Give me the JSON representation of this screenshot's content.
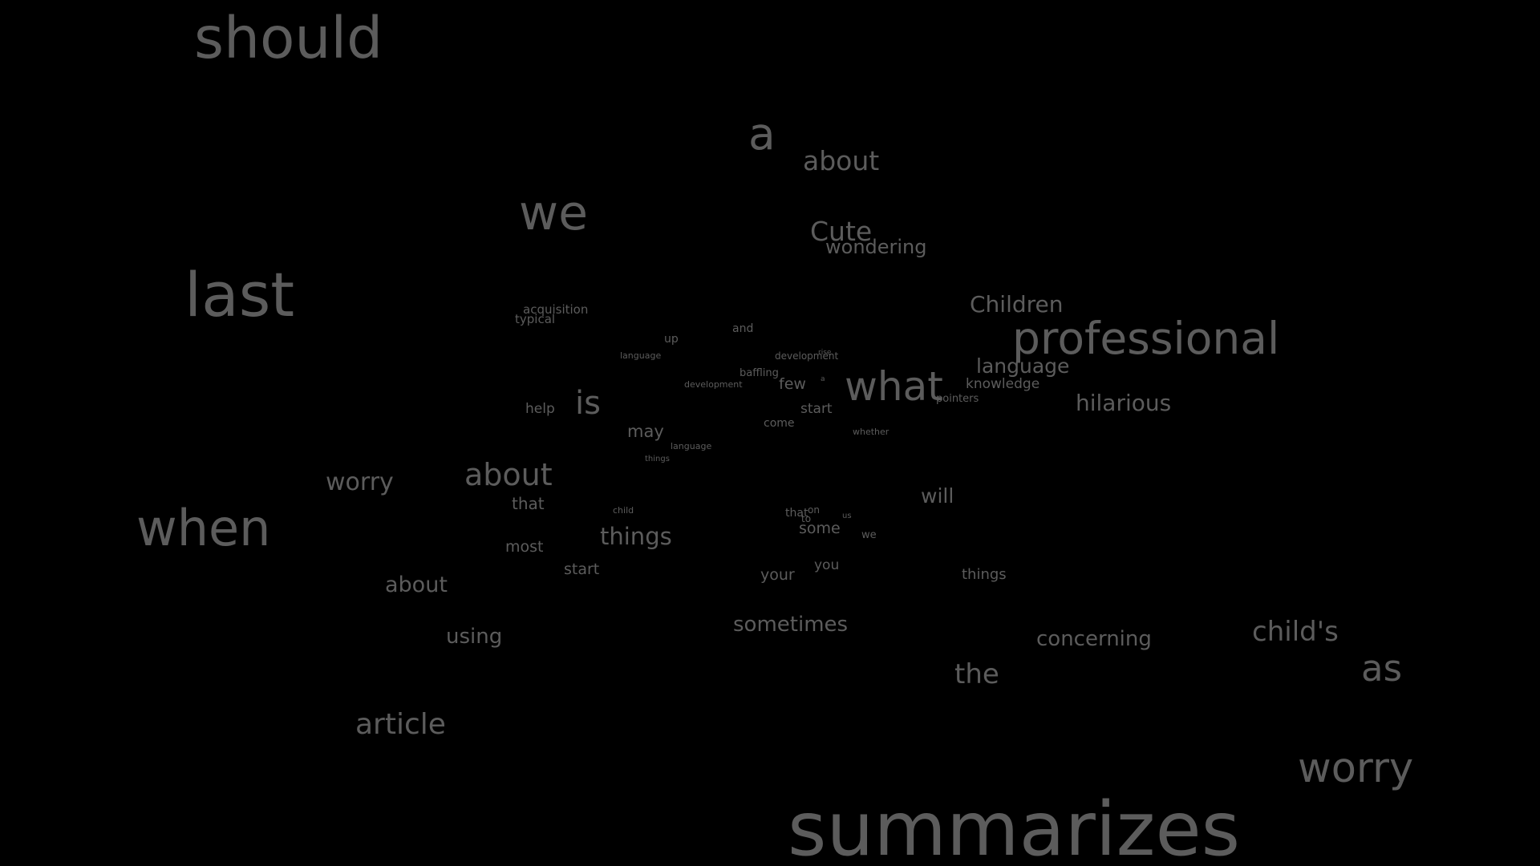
{
  "words": [
    {
      "text": "should",
      "weight": 1.0
    },
    {
      "text": "a",
      "weight": 0.82
    },
    {
      "text": "about",
      "weight": 0.55
    },
    {
      "text": "we",
      "weight": 0.9
    },
    {
      "text": "Cute",
      "weight": 0.55
    },
    {
      "text": "wondering",
      "weight": 0.42
    },
    {
      "text": "last",
      "weight": 1.0
    },
    {
      "text": "acquisition",
      "weight": 0.25
    },
    {
      "text": "typical",
      "weight": 0.25
    },
    {
      "text": "Children",
      "weight": 0.5
    },
    {
      "text": "professional",
      "weight": 0.92
    },
    {
      "text": "up",
      "weight": 0.2
    },
    {
      "text": "and",
      "weight": 0.2
    },
    {
      "text": "language",
      "weight": 0.15
    },
    {
      "text": "development",
      "weight": 0.15
    },
    {
      "text": "rise",
      "weight": 0.1
    },
    {
      "text": "baffling",
      "weight": 0.2
    },
    {
      "text": "development",
      "weight": 0.13
    },
    {
      "text": "a",
      "weight": 0.1
    },
    {
      "text": "few",
      "weight": 0.32
    },
    {
      "text": "what",
      "weight": 0.85
    },
    {
      "text": "language",
      "weight": 0.45
    },
    {
      "text": "knowledge",
      "weight": 0.3
    },
    {
      "text": "pointers",
      "weight": 0.2
    },
    {
      "text": "hilarious",
      "weight": 0.5
    },
    {
      "text": "is",
      "weight": 0.75
    },
    {
      "text": "help",
      "weight": 0.25
    },
    {
      "text": "start",
      "weight": 0.28
    },
    {
      "text": "come",
      "weight": 0.2
    },
    {
      "text": "may",
      "weight": 0.35
    },
    {
      "text": "whether",
      "weight": 0.15
    },
    {
      "text": "language",
      "weight": 0.15
    },
    {
      "text": "things",
      "weight": 0.12
    },
    {
      "text": "worry",
      "weight": 0.55
    },
    {
      "text": "about",
      "weight": 0.72
    },
    {
      "text": "will",
      "weight": 0.45
    },
    {
      "text": "that",
      "weight": 0.3
    },
    {
      "text": "child",
      "weight": 0.12
    },
    {
      "text": "that",
      "weight": 0.2
    },
    {
      "text": "on",
      "weight": 0.14
    },
    {
      "text": "to",
      "weight": 0.14
    },
    {
      "text": "us",
      "weight": 0.12
    },
    {
      "text": "when",
      "weight": 0.98
    },
    {
      "text": "some",
      "weight": 0.32
    },
    {
      "text": "we",
      "weight": 0.15
    },
    {
      "text": "things",
      "weight": 0.62
    },
    {
      "text": "most",
      "weight": 0.28
    },
    {
      "text": "start",
      "weight": 0.3
    },
    {
      "text": "you",
      "weight": 0.25
    },
    {
      "text": "your",
      "weight": 0.28
    },
    {
      "text": "things",
      "weight": 0.28
    },
    {
      "text": "about",
      "weight": 0.48
    },
    {
      "text": "using",
      "weight": 0.48
    },
    {
      "text": "sometimes",
      "weight": 0.48
    },
    {
      "text": "concerning",
      "weight": 0.5
    },
    {
      "text": "child's",
      "weight": 0.6
    },
    {
      "text": "the",
      "weight": 0.6
    },
    {
      "text": "as",
      "weight": 0.75
    },
    {
      "text": "article",
      "weight": 0.6
    },
    {
      "text": "worry",
      "weight": 0.85
    },
    {
      "text": "summarizes",
      "weight": 1.0
    }
  ],
  "colors": {
    "background": "#000000",
    "text": "#5c5c5c"
  }
}
